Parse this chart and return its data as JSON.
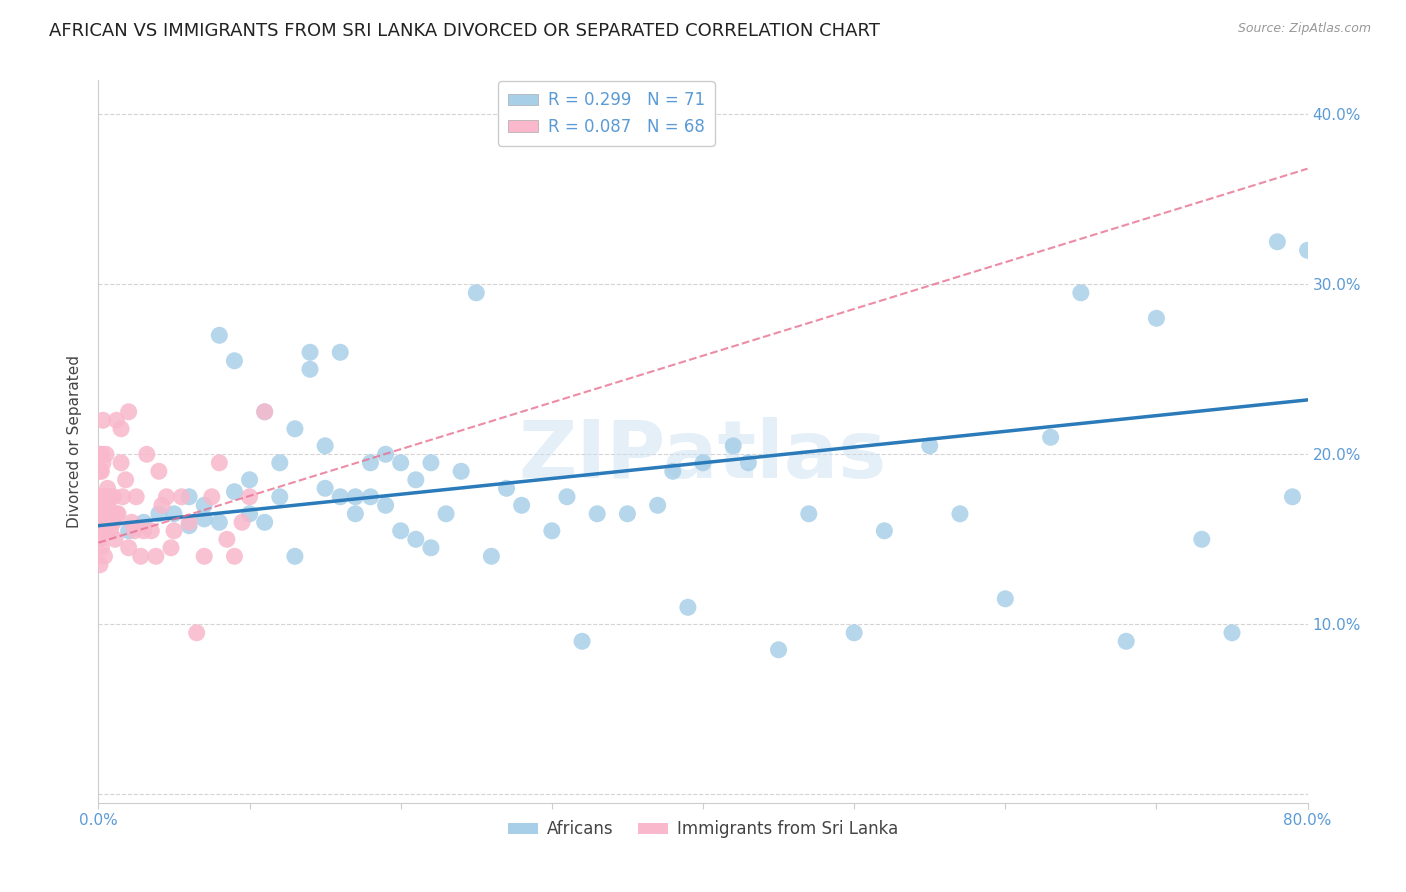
{
  "title": "AFRICAN VS IMMIGRANTS FROM SRI LANKA DIVORCED OR SEPARATED CORRELATION CHART",
  "source": "Source: ZipAtlas.com",
  "ylabel": "Divorced or Separated",
  "xlim": [
    0.0,
    0.8
  ],
  "ylim": [
    -0.005,
    0.42
  ],
  "xticks": [
    0.0,
    0.1,
    0.2,
    0.3,
    0.4,
    0.5,
    0.6,
    0.7,
    0.8
  ],
  "xticklabels": [
    "0.0%",
    "",
    "",
    "",
    "",
    "",
    "",
    "",
    "80.0%"
  ],
  "yticks": [
    0.0,
    0.1,
    0.2,
    0.3,
    0.4
  ],
  "yticklabels": [
    "",
    "10.0%",
    "20.0%",
    "30.0%",
    "40.0%"
  ],
  "blue_R": 0.299,
  "blue_N": 71,
  "pink_R": 0.087,
  "pink_N": 68,
  "blue_color": "#a8cfe8",
  "pink_color": "#f9b8cb",
  "blue_line_color": "#2b7bba",
  "pink_line_color": "#e87090",
  "legend_label_blue": "Africans",
  "legend_label_pink": "Immigrants from Sri Lanka",
  "watermark": "ZIPatlas",
  "blue_scatter_x": [
    0.02,
    0.03,
    0.04,
    0.05,
    0.06,
    0.06,
    0.07,
    0.07,
    0.08,
    0.08,
    0.09,
    0.09,
    0.1,
    0.1,
    0.11,
    0.11,
    0.12,
    0.12,
    0.13,
    0.13,
    0.14,
    0.14,
    0.15,
    0.15,
    0.16,
    0.16,
    0.17,
    0.17,
    0.18,
    0.18,
    0.19,
    0.19,
    0.2,
    0.2,
    0.21,
    0.21,
    0.22,
    0.22,
    0.23,
    0.24,
    0.25,
    0.26,
    0.27,
    0.28,
    0.3,
    0.31,
    0.32,
    0.33,
    0.35,
    0.37,
    0.38,
    0.39,
    0.4,
    0.42,
    0.43,
    0.45,
    0.47,
    0.5,
    0.52,
    0.55,
    0.57,
    0.6,
    0.63,
    0.65,
    0.68,
    0.7,
    0.73,
    0.75,
    0.78,
    0.79,
    0.8
  ],
  "blue_scatter_y": [
    0.155,
    0.16,
    0.165,
    0.165,
    0.158,
    0.175,
    0.162,
    0.17,
    0.16,
    0.27,
    0.178,
    0.255,
    0.165,
    0.185,
    0.225,
    0.16,
    0.175,
    0.195,
    0.215,
    0.14,
    0.25,
    0.26,
    0.18,
    0.205,
    0.175,
    0.26,
    0.165,
    0.175,
    0.175,
    0.195,
    0.17,
    0.2,
    0.155,
    0.195,
    0.15,
    0.185,
    0.145,
    0.195,
    0.165,
    0.19,
    0.295,
    0.14,
    0.18,
    0.17,
    0.155,
    0.175,
    0.09,
    0.165,
    0.165,
    0.17,
    0.19,
    0.11,
    0.195,
    0.205,
    0.195,
    0.085,
    0.165,
    0.095,
    0.155,
    0.205,
    0.165,
    0.115,
    0.21,
    0.295,
    0.09,
    0.28,
    0.15,
    0.095,
    0.325,
    0.175,
    0.32
  ],
  "pink_scatter_x": [
    0.001,
    0.001,
    0.001,
    0.001,
    0.001,
    0.002,
    0.002,
    0.002,
    0.002,
    0.002,
    0.002,
    0.002,
    0.002,
    0.002,
    0.002,
    0.003,
    0.003,
    0.003,
    0.003,
    0.004,
    0.004,
    0.004,
    0.005,
    0.005,
    0.005,
    0.006,
    0.006,
    0.007,
    0.007,
    0.008,
    0.008,
    0.009,
    0.01,
    0.01,
    0.011,
    0.012,
    0.012,
    0.013,
    0.015,
    0.015,
    0.016,
    0.018,
    0.02,
    0.02,
    0.022,
    0.024,
    0.025,
    0.028,
    0.03,
    0.032,
    0.035,
    0.038,
    0.04,
    0.042,
    0.045,
    0.048,
    0.05,
    0.055,
    0.06,
    0.065,
    0.07,
    0.075,
    0.08,
    0.085,
    0.09,
    0.095,
    0.1,
    0.11
  ],
  "pink_scatter_y": [
    0.175,
    0.19,
    0.2,
    0.15,
    0.135,
    0.165,
    0.175,
    0.19,
    0.2,
    0.155,
    0.145,
    0.17,
    0.175,
    0.155,
    0.16,
    0.195,
    0.155,
    0.175,
    0.22,
    0.14,
    0.165,
    0.155,
    0.175,
    0.155,
    0.2,
    0.17,
    0.18,
    0.175,
    0.16,
    0.155,
    0.175,
    0.165,
    0.175,
    0.16,
    0.15,
    0.165,
    0.22,
    0.165,
    0.195,
    0.215,
    0.175,
    0.185,
    0.145,
    0.225,
    0.16,
    0.155,
    0.175,
    0.14,
    0.155,
    0.2,
    0.155,
    0.14,
    0.19,
    0.17,
    0.175,
    0.145,
    0.155,
    0.175,
    0.16,
    0.095,
    0.14,
    0.175,
    0.195,
    0.15,
    0.14,
    0.16,
    0.175,
    0.225
  ],
  "background_color": "#ffffff",
  "grid_color": "#d0d0d0",
  "tick_color": "#5b9bd5",
  "title_fontsize": 13,
  "axis_label_fontsize": 11,
  "tick_fontsize": 11,
  "legend_fontsize": 12
}
